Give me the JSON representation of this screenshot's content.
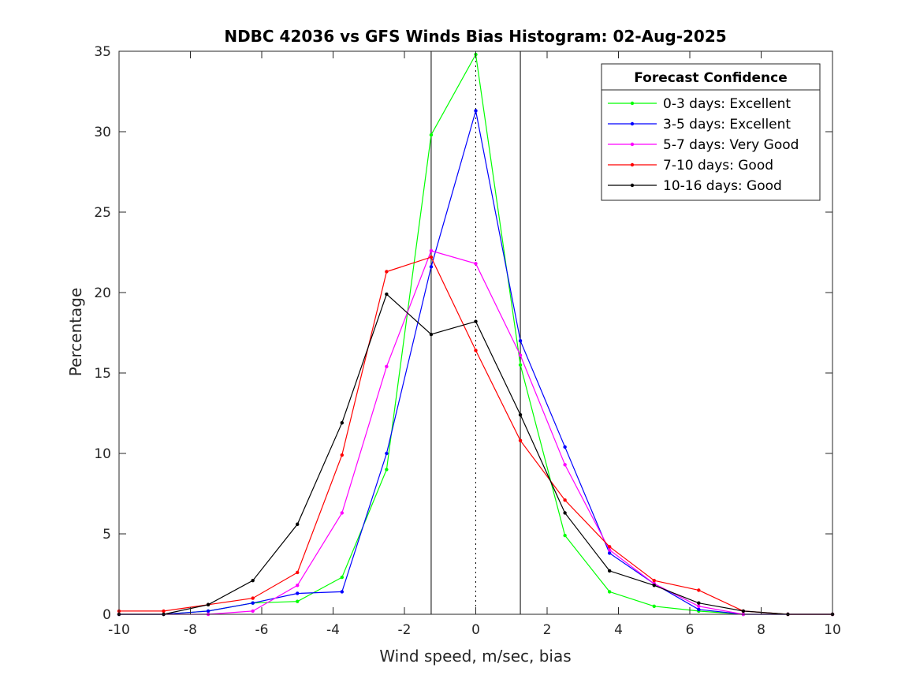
{
  "chart_data": {
    "type": "line",
    "title": "NDBC 42036 vs GFS Winds Bias Histogram: 02-Aug-2025",
    "xlabel": "Wind speed, m/sec, bias",
    "ylabel": "Percentage",
    "xlim": [
      -10,
      10
    ],
    "ylim": [
      0,
      35
    ],
    "xticks": [
      -10,
      -8,
      -6,
      -4,
      -2,
      0,
      2,
      4,
      6,
      8,
      10
    ],
    "yticks": [
      0,
      5,
      10,
      15,
      20,
      25,
      30,
      35
    ],
    "grid": false,
    "legend": {
      "title": "Forecast Confidence",
      "placement": "top-right"
    },
    "reference_lines": [
      {
        "x": -1.25,
        "style": "solid",
        "color": "#000000"
      },
      {
        "x": 0,
        "style": "dotted",
        "color": "#000000"
      },
      {
        "x": 1.25,
        "style": "solid",
        "color": "#000000"
      }
    ],
    "x": [
      -10,
      -8.75,
      -7.5,
      -6.25,
      -5,
      -3.75,
      -2.5,
      -1.25,
      0,
      1.25,
      2.5,
      3.75,
      5,
      6.25,
      7.5,
      8.75,
      10
    ],
    "series": [
      {
        "name": "0-3 days: Excellent",
        "color": "#00ff00",
        "values": [
          0,
          0,
          0.2,
          0.7,
          0.8,
          2.3,
          9.0,
          29.8,
          34.8,
          15.5,
          4.9,
          1.4,
          0.5,
          0.2,
          0,
          0,
          0
        ]
      },
      {
        "name": "3-5 days: Excellent",
        "color": "#0000ff",
        "values": [
          0,
          0,
          0.2,
          0.7,
          1.3,
          1.4,
          10.0,
          21.6,
          31.3,
          17.0,
          10.4,
          3.8,
          1.9,
          0.3,
          0,
          0,
          0
        ]
      },
      {
        "name": "5-7 days: Very Good",
        "color": "#ff00ff",
        "values": [
          0,
          0,
          0,
          0.2,
          1.8,
          6.3,
          15.4,
          22.6,
          21.8,
          16.1,
          9.3,
          4.0,
          1.9,
          0.5,
          0,
          0,
          0
        ]
      },
      {
        "name": "7-10 days: Good",
        "color": "#ff0000",
        "values": [
          0.2,
          0.2,
          0.6,
          1.0,
          2.6,
          9.9,
          21.3,
          22.2,
          16.4,
          10.8,
          7.1,
          4.2,
          2.1,
          1.5,
          0.2,
          0,
          0
        ]
      },
      {
        "name": "10-16 days: Good",
        "color": "#000000",
        "values": [
          0,
          0,
          0.6,
          2.1,
          5.6,
          11.9,
          19.9,
          17.4,
          18.2,
          12.4,
          6.3,
          2.7,
          1.8,
          0.7,
          0.2,
          0,
          0
        ]
      }
    ]
  }
}
